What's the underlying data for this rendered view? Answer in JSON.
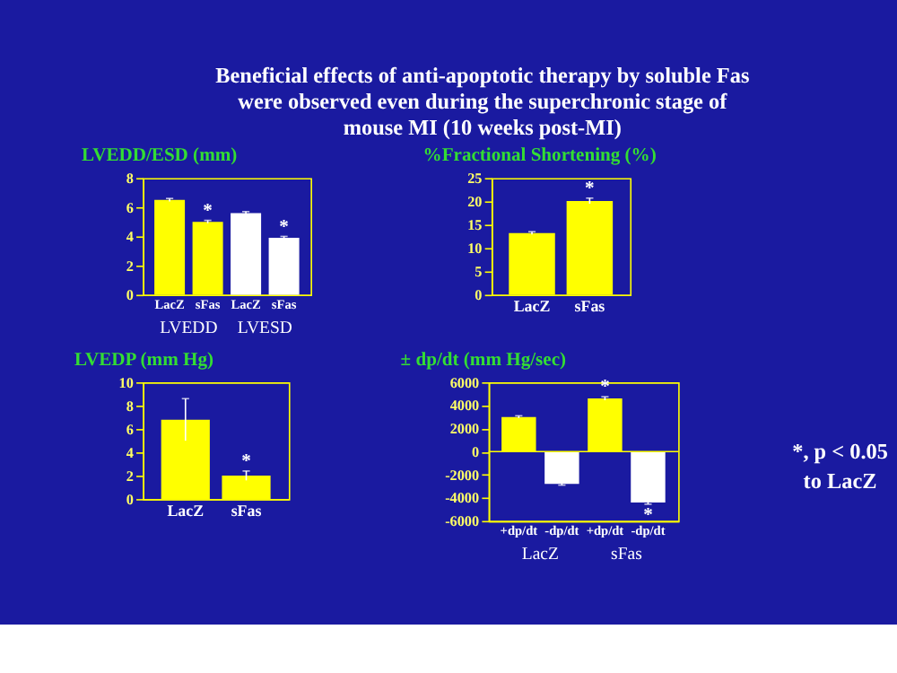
{
  "chart_data": [
    {
      "type": "other",
      "title": "Beneficial effects of anti-apoptotic therapy by soluble Fas\nwere observed even during the superchronic stage of\nmouse MI (10 weeks post-MI)",
      "annotations": [
        "*, p < 0.05\nto LacZ"
      ]
    },
    {
      "type": "bar",
      "title": "LVEDD/ESD (mm)",
      "categories": [
        "LacZ",
        "sFas",
        "LacZ",
        "sFas"
      ],
      "values": [
        6.5,
        5.0,
        5.6,
        3.9
      ],
      "errors": [
        0.1,
        0.1,
        0.1,
        0.1
      ],
      "colors": [
        "#ffff00",
        "#ffff00",
        "#ffffff",
        "#ffffff"
      ],
      "value_labels": [
        null,
        "*",
        null,
        "*"
      ],
      "annotations": [
        "LVEDD",
        "LVESD"
      ],
      "ylim": [
        0,
        8
      ],
      "yticks": [
        0,
        2,
        4,
        6,
        8
      ],
      "grid": false
    },
    {
      "type": "bar",
      "title": "%Fractional Shortening (%)",
      "categories": [
        "LacZ",
        "sFas"
      ],
      "values": [
        13.2,
        20.1
      ],
      "errors": [
        0.3,
        0.6
      ],
      "colors": [
        "#ffff00",
        "#ffff00"
      ],
      "value_labels": [
        null,
        "*"
      ],
      "ylim": [
        0,
        25
      ],
      "yticks": [
        0,
        5,
        10,
        15,
        20,
        25
      ],
      "grid": false
    },
    {
      "type": "bar",
      "title": "LVEDP (mm Hg)",
      "categories": [
        "LacZ",
        "sFas"
      ],
      "values": [
        6.8,
        2.0
      ],
      "errors": [
        1.8,
        0.4
      ],
      "colors": [
        "#ffff00",
        "#ffff00"
      ],
      "value_labels": [
        null,
        "*"
      ],
      "ylim": [
        0,
        10
      ],
      "yticks": [
        0,
        2,
        4,
        6,
        8,
        10
      ],
      "grid": false
    },
    {
      "type": "bar",
      "title": "± dp/dt (mm Hg/sec)",
      "categories": [
        "+dp/dt",
        "-dp/dt",
        "+dp/dt",
        "-dp/dt"
      ],
      "values": [
        3000,
        -2800,
        4600,
        -4400
      ],
      "errors": [
        100,
        100,
        150,
        150
      ],
      "colors": [
        "#ffff00",
        "#ffffff",
        "#ffff00",
        "#ffffff"
      ],
      "value_labels": [
        null,
        null,
        "*",
        "*"
      ],
      "annotations": [
        "LacZ",
        "sFas"
      ],
      "ylim": [
        -6000,
        6000
      ],
      "yticks": [
        -6000,
        -4000,
        -2000,
        0,
        2000,
        4000,
        6000
      ],
      "ref_lines": [
        {
          "axis": "y",
          "value": 0,
          "color": "#ffff00"
        }
      ],
      "grid": false
    }
  ]
}
